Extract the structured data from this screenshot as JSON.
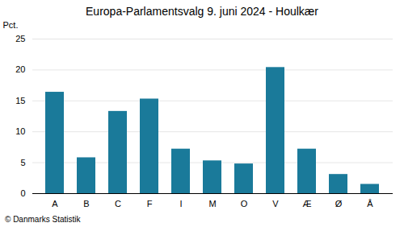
{
  "chart_data": {
    "type": "bar",
    "title": "Europa-Parlamentsvalg 9. juni 2024 - Houlkær",
    "categories": [
      "A",
      "B",
      "C",
      "F",
      "I",
      "M",
      "O",
      "V",
      "Æ",
      "Ø",
      "Å"
    ],
    "values": [
      16.4,
      5.8,
      13.3,
      15.3,
      7.2,
      5.3,
      4.8,
      20.4,
      7.2,
      3.1,
      1.5
    ],
    "color": "#1a7a9a",
    "ylabel": "Pct.",
    "ylim": [
      0,
      25
    ],
    "yticks": [
      0,
      5,
      10,
      15,
      20,
      25
    ],
    "grid": true,
    "footer": "© Danmarks Statistik"
  }
}
